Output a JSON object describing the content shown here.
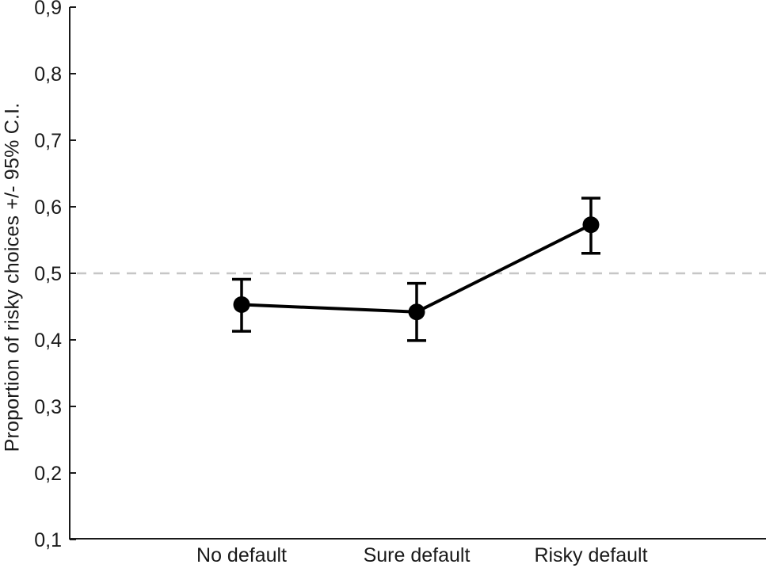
{
  "page": {
    "background": "#ffffff"
  },
  "chart_data": {
    "type": "line",
    "title": "",
    "xlabel": "",
    "ylabel": "Proportion of risky choices +/- 95% C.I.",
    "categories": [
      "No default",
      "Sure default",
      "Risky default"
    ],
    "series": [
      {
        "name": "Proportion of risky choices",
        "values": [
          0.453,
          0.442,
          0.573
        ],
        "ci_lower": [
          0.413,
          0.399,
          0.53
        ],
        "ci_upper": [
          0.491,
          0.485,
          0.613
        ]
      }
    ],
    "ylim": [
      0.1,
      0.9
    ],
    "ytick_values": [
      0.9,
      0.8,
      0.7,
      0.6,
      0.5,
      0.4,
      0.3,
      0.2,
      0.1
    ],
    "ytick_labels": [
      "0,9",
      "0,8",
      "0,7",
      "0,6",
      "0,5",
      "0,4",
      "0,3",
      "0,2",
      "0,1"
    ],
    "reference_line": {
      "value": 0.5,
      "style": "dashed"
    },
    "grid": false,
    "legend": "none",
    "colors": {
      "data": "#000000",
      "reference": "#c6c6c6",
      "axis": "#1a1a1a",
      "text": "#1a1a1a"
    }
  }
}
